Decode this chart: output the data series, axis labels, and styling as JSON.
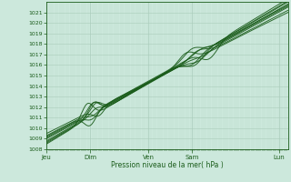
{
  "xlabel": "Pression niveau de la mer( hPa )",
  "bg_color": "#cce8dc",
  "plot_bg_color": "#cce8dc",
  "grid_major_color": "#aaccbb",
  "grid_minor_color": "#bbddcc",
  "line_color": "#1a5c1a",
  "ylim": [
    1008,
    1022
  ],
  "ytick_min": 1008,
  "ytick_max": 1021,
  "x_tick_labels": [
    "Jeu",
    "Dim",
    "Ven",
    "Sam",
    "Lun"
  ],
  "x_tick_positions": [
    0,
    0.75,
    1.75,
    2.5,
    4.0
  ],
  "xlim": [
    0,
    4.15
  ]
}
